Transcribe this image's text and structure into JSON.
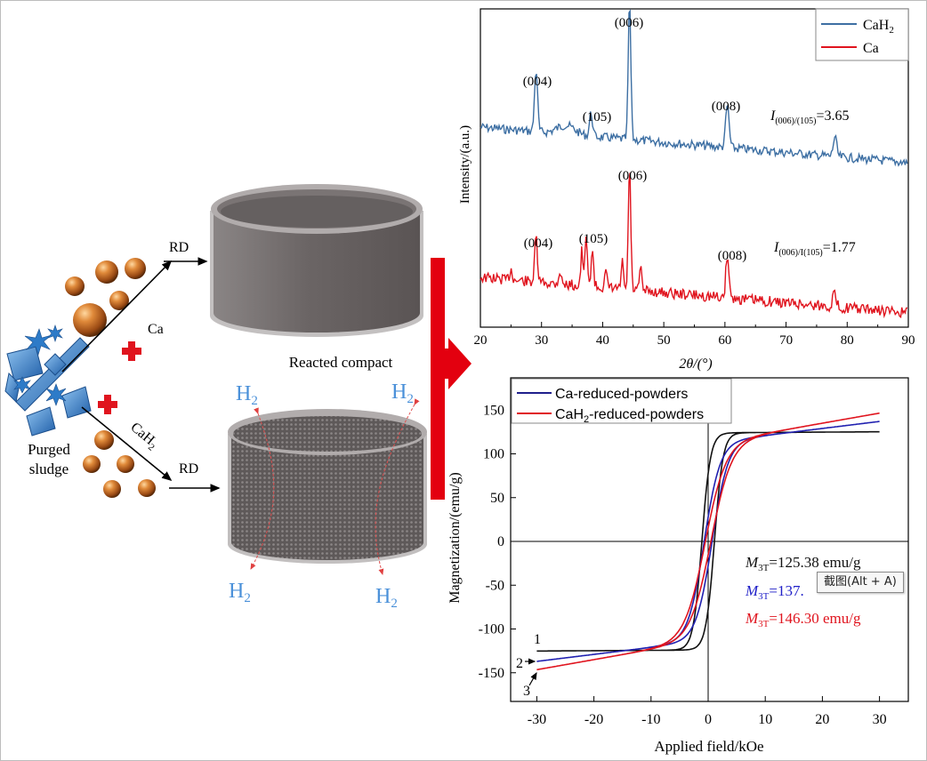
{
  "left": {
    "sludge_label_line1": "Purged",
    "sludge_label_line2": "sludge",
    "ca_label": "Ca",
    "cah2_label_main": "CaH",
    "cah2_label_sub": "2",
    "rd_top": "RD",
    "rd_bottom": "RD",
    "reacted_compact": "Reacted compact",
    "h2_main": "H",
    "h2_sub": "2"
  },
  "xrd": {
    "ylabel": "Intensity/(a.u.)",
    "xlabel_main": "2θ/(°)",
    "legend": [
      {
        "name_main": "CaH",
        "name_sub": "2",
        "color": "#3d6fa3"
      },
      {
        "name_main": "Ca",
        "name_sub": "",
        "color": "#e0141e"
      }
    ],
    "x_ticks": [
      "20",
      "30",
      "40",
      "50",
      "60",
      "70",
      "80",
      "90"
    ],
    "top_peaks": [
      "(004)",
      "(105)",
      "(006)",
      "(008)"
    ],
    "bottom_peaks": [
      "(004)",
      "(105)",
      "(006)",
      "(008)"
    ],
    "top_ratio_sub": "(006)/(105)",
    "top_ratio_value": "=3.65",
    "bottom_ratio_sub": "(006)/I(105)",
    "bottom_ratio_value": "=1.77"
  },
  "hyst": {
    "ylabel": "Magnetization/(emu/g)",
    "xlabel": "Applied field/kOe",
    "x_ticks": [
      "-30",
      "-20",
      "-10",
      "0",
      "10",
      "20",
      "30"
    ],
    "y_ticks": [
      "150",
      "100",
      "50",
      "0",
      "-50",
      "-100",
      "-150"
    ],
    "legend": [
      {
        "name": "Ca-reduced-powders",
        "color": "#1f1f8c"
      },
      {
        "name_main": "CaH",
        "name_sub": "2",
        "name_rest": "-reduced-powders",
        "color": "#e0141e"
      }
    ],
    "annotations": [
      {
        "value": "=125.38 emu/g",
        "color": "#111111"
      },
      {
        "value": "=137.",
        "color": "#2020c8"
      },
      {
        "value": "=146.30 emu/g",
        "color": "#e0141e"
      }
    ],
    "m_main": "M",
    "m_sub": "3T",
    "curve_labels": [
      "1",
      "2",
      "3"
    ]
  },
  "tooltip": "截图(Alt + A)"
}
